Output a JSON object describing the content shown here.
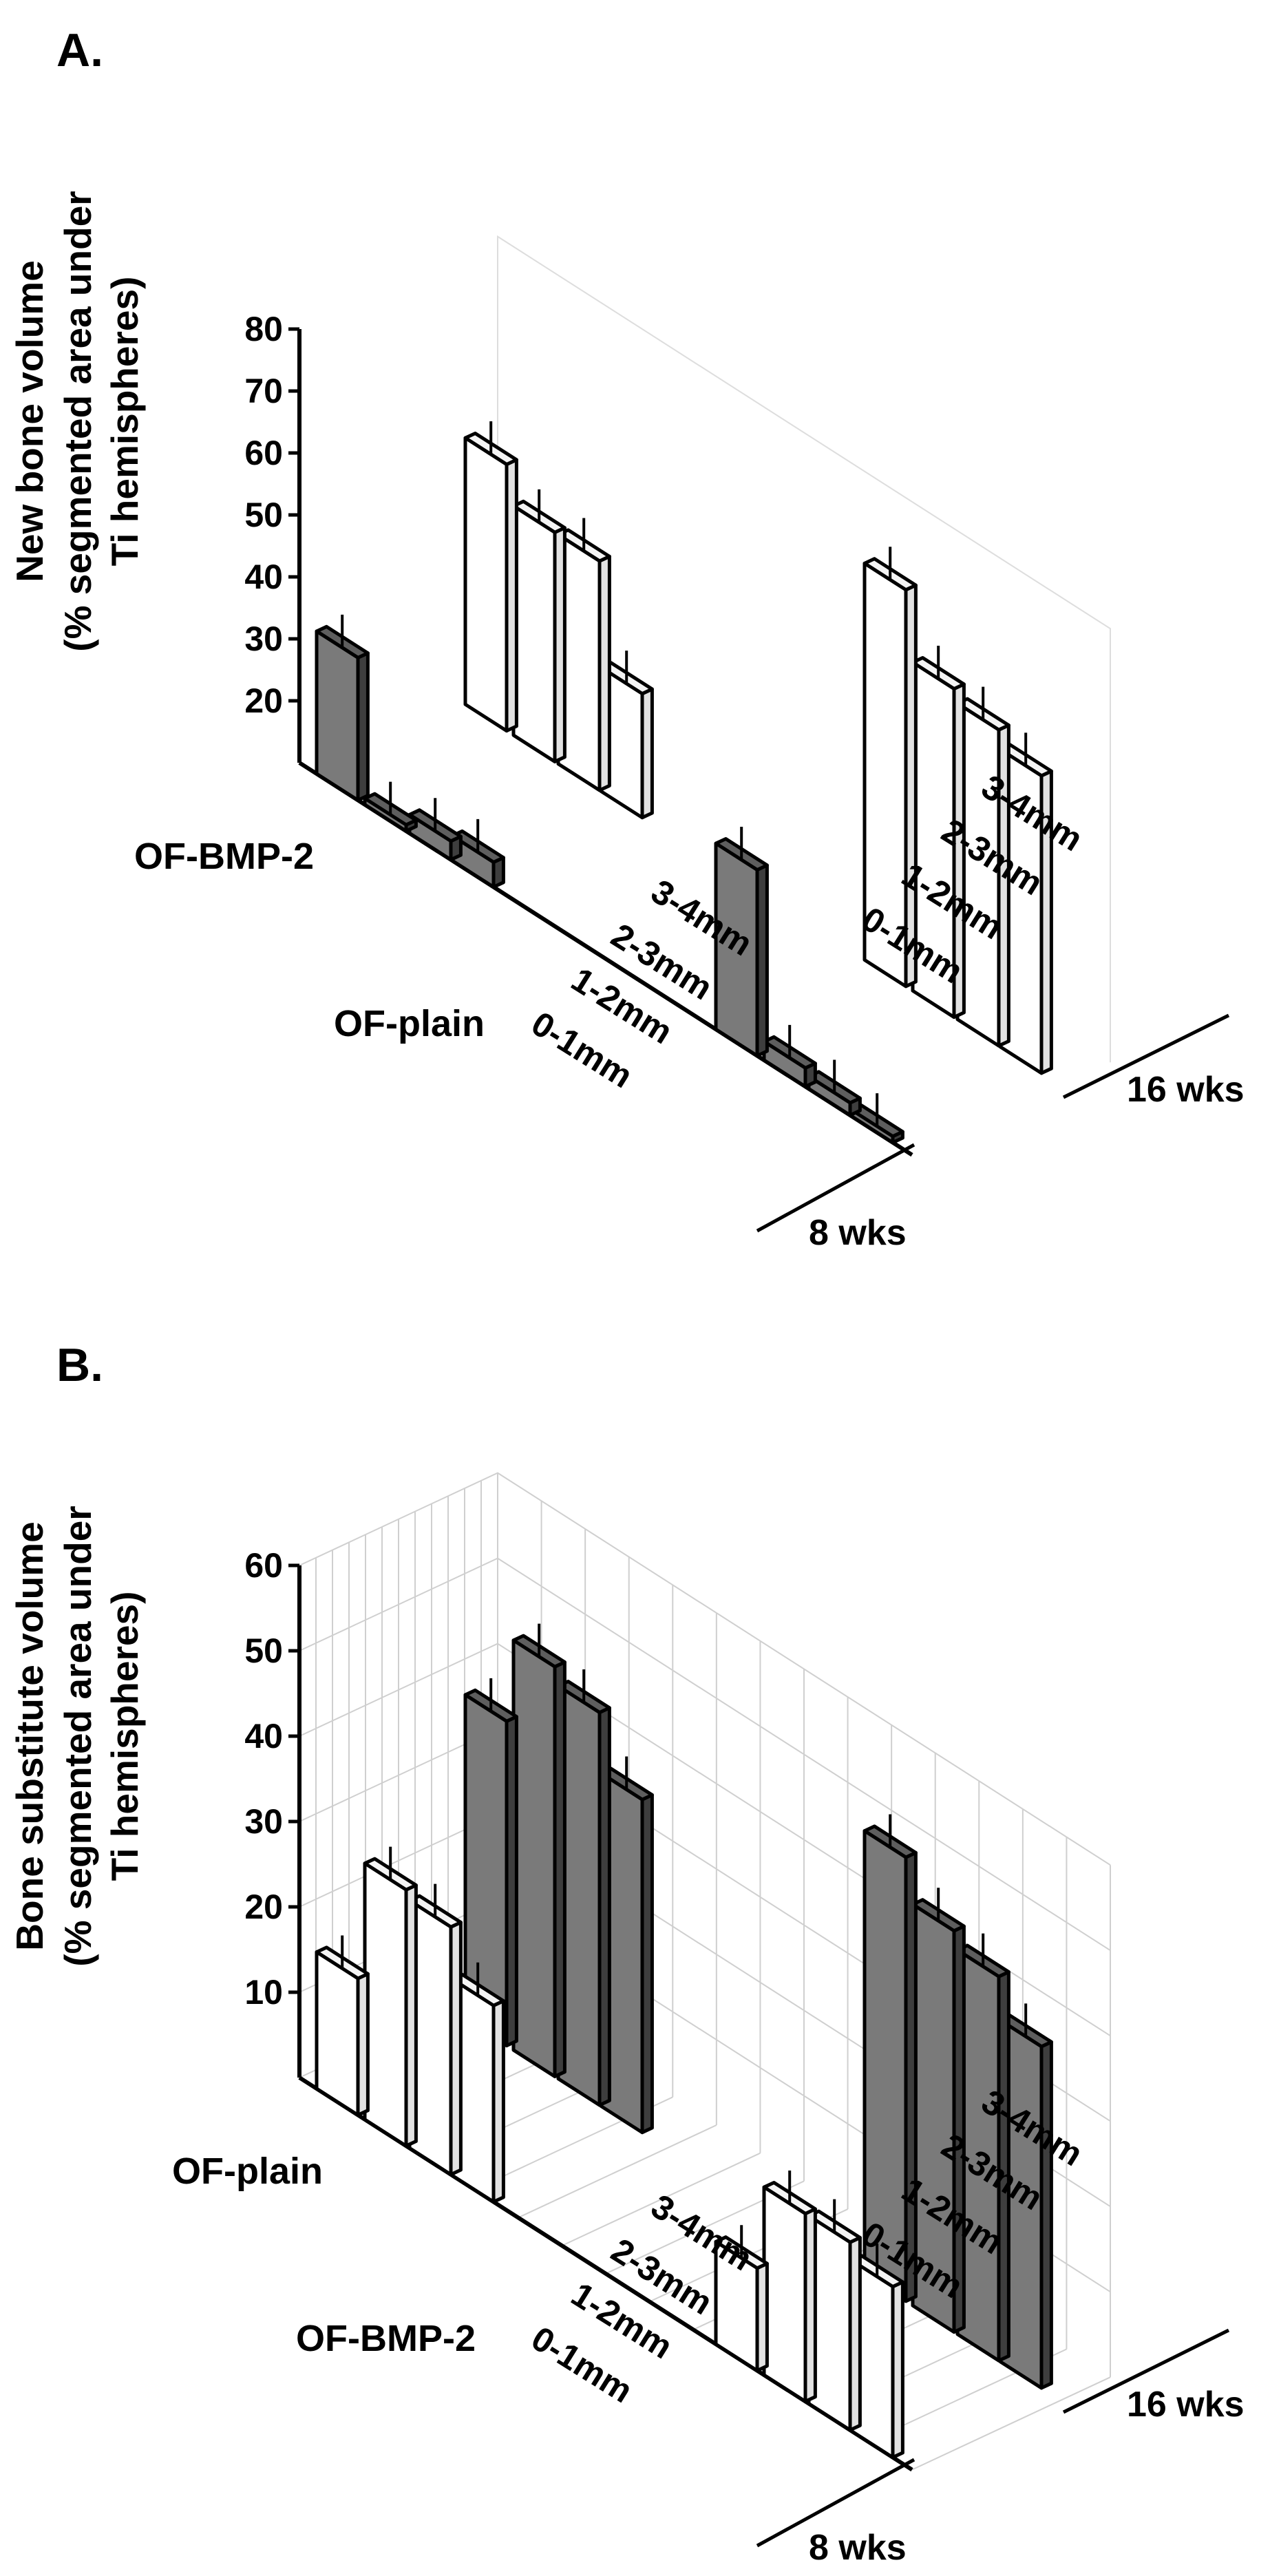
{
  "chart_data": [
    {
      "panel": "A.",
      "type": "bar3d",
      "ylabel_lines": [
        "New bone volume",
        "(% segmented area under",
        "Ti hemispheres)"
      ],
      "y_ticks": [
        20,
        30,
        40,
        50,
        60,
        70,
        80
      ],
      "ylim": [
        10,
        80
      ],
      "series": [
        {
          "name": "OF-BMP-2",
          "fill": "light"
        },
        {
          "name": "OF-plain",
          "fill": "dark"
        }
      ],
      "groups": [
        {
          "label": "8 wks",
          "categories": [
            "0-1mm",
            "1-2mm",
            "2-3mm",
            "3-4mm"
          ],
          "values": {
            "OF-BMP-2": [
              53,
              47,
              47,
              30
            ],
            "OF-plain": [
              33,
              11,
              13,
              14
            ]
          }
        },
        {
          "label": "16 wks",
          "categories": [
            "0-1mm",
            "1-2mm",
            "2-3mm",
            "3-4mm"
          ],
          "values": {
            "OF-BMP-2": [
              74,
              63,
              61,
              58
            ],
            "OF-plain": [
              40,
              13,
              12,
              11
            ]
          }
        }
      ]
    },
    {
      "panel": "B.",
      "type": "bar3d",
      "ylabel_lines": [
        "Bone substitute volume",
        "(% segmented area under",
        "Ti hemispheres)"
      ],
      "y_ticks": [
        10,
        20,
        30,
        40,
        50,
        60
      ],
      "ylim": [
        0,
        60
      ],
      "series": [
        {
          "name": "OF-plain",
          "fill": "dark"
        },
        {
          "name": "OF-BMP-2",
          "fill": "light"
        }
      ],
      "groups": [
        {
          "label": "8 wks",
          "categories": [
            "0-1mm",
            "1-2mm",
            "2-3mm",
            "3-4mm"
          ],
          "values": {
            "OF-plain": [
              38,
              48,
              46,
              39
            ],
            "OF-BMP-2": [
              16,
              30,
              29,
              23
            ]
          }
        },
        {
          "label": "16 wks",
          "categories": [
            "0-1mm",
            "1-2mm",
            "2-3mm",
            "3-4mm"
          ],
          "values": {
            "OF-plain": [
              52,
              47,
              45,
              40
            ],
            "OF-BMP-2": [
              12,
              22,
              22,
              20
            ]
          }
        }
      ]
    }
  ]
}
